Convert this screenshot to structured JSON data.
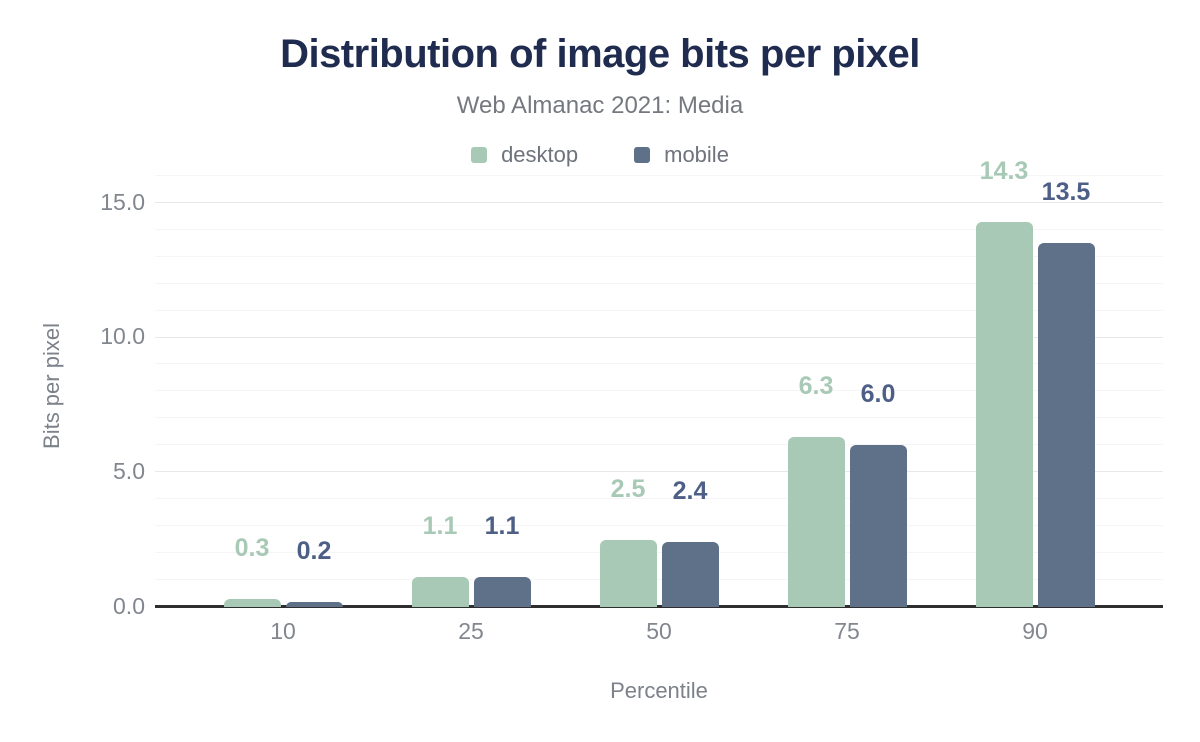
{
  "figure": {
    "background": "#ffffff"
  },
  "chart_data": {
    "type": "bar",
    "title": "Distribution of image bits per pixel",
    "subtitle": "Web Almanac 2021: Media",
    "xlabel": "Percentile",
    "ylabel": "Bits per pixel",
    "categories": [
      "10",
      "25",
      "50",
      "75",
      "90"
    ],
    "series": [
      {
        "name": "desktop",
        "color": "#a8c9b5",
        "label_color": "#a8c9b5",
        "values": [
          0.3,
          1.1,
          2.5,
          6.3,
          14.3
        ]
      },
      {
        "name": "mobile",
        "color": "#5f7089",
        "label_color": "#4d5f86",
        "values": [
          0.2,
          1.1,
          2.4,
          6.0,
          13.5
        ]
      }
    ],
    "ylim": [
      0,
      16.4
    ],
    "yticks": [
      {
        "value": 0,
        "label": "0.0"
      },
      {
        "value": 5,
        "label": "5.0"
      },
      {
        "value": 10,
        "label": "10.0"
      },
      {
        "value": 15,
        "label": "15.0"
      }
    ],
    "minor_grid_step": 1,
    "grid": "on",
    "legend_position": "top",
    "colors": {
      "title": "#1f2c50",
      "subtitle": "#75797f",
      "tick": "#82878f",
      "axis_title": "#7c818a",
      "axis_line": "#2e2e2e",
      "grid_major": "#e7e8ec",
      "grid_minor": "#f5f5f7",
      "legend_text": "#6e737c"
    }
  }
}
